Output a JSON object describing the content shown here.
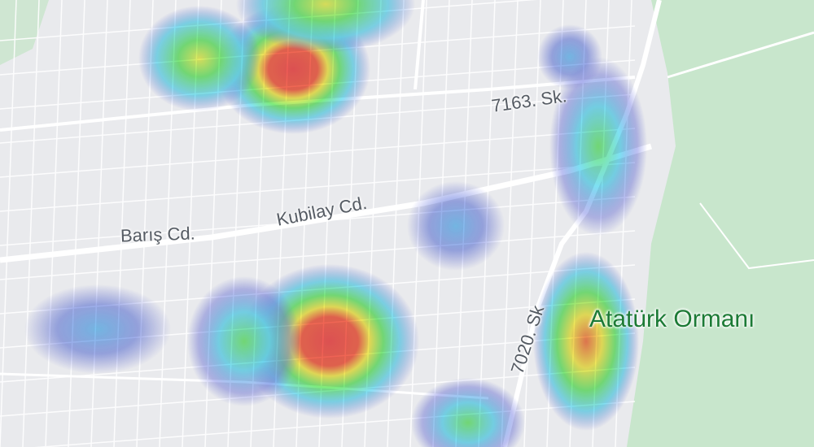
{
  "map": {
    "labels": {
      "baris": "Barış Cd.",
      "kubilay": "Kubilay Cd.",
      "sk7163": "7163. Sk.",
      "sk7020": "7020. Sk",
      "park": "Atatürk Ormanı"
    },
    "colors": {
      "land": "#e9eaed",
      "park": "#c8e6cc",
      "road": "#ffffff",
      "park_label": "#1c7a35"
    },
    "heatmap_colors": [
      "#6a72e0",
      "#5fd8f0",
      "#6ee86e",
      "#f2e84a",
      "#f04a40"
    ]
  }
}
